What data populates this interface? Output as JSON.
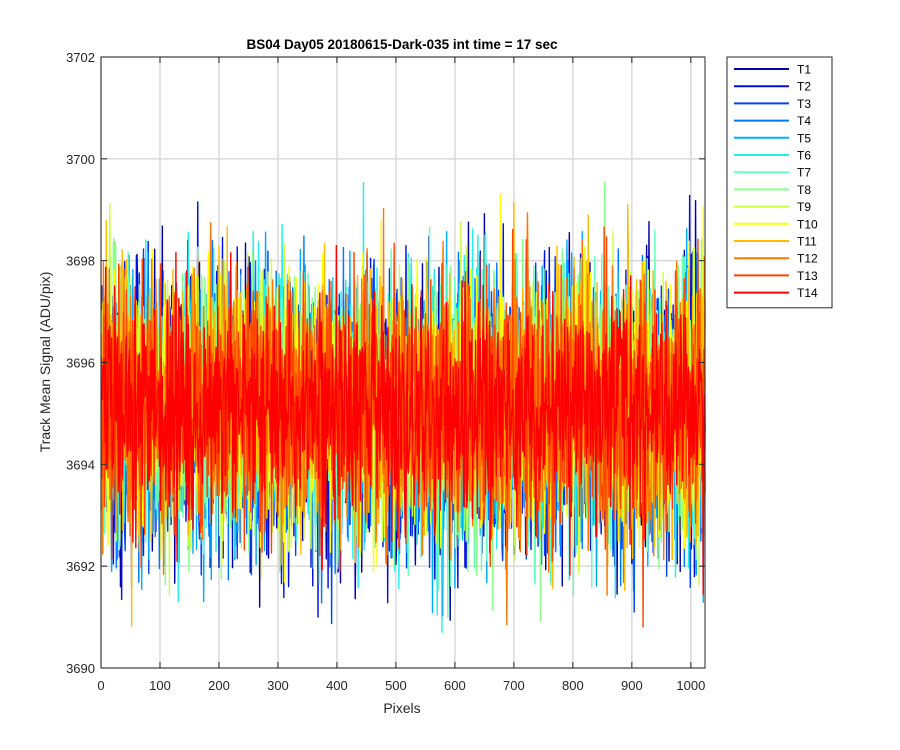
{
  "chart_data": {
    "type": "line",
    "title": "BS04 Day05 20180615-Dark-035 int time = 17 sec",
    "xlabel": "Pixels",
    "ylabel": "Track Mean Signal (ADU/pix)",
    "xlim": [
      0,
      1024
    ],
    "ylim": [
      3690,
      3702
    ],
    "xticks": [
      "0",
      "100",
      "200",
      "300",
      "400",
      "500",
      "600",
      "700",
      "800",
      "900",
      "1000"
    ],
    "yticks": [
      "3690",
      "3692",
      "3694",
      "3696",
      "3698",
      "3700",
      "3702"
    ],
    "grid": true,
    "legend_position": "outside-top-right",
    "n_points_per_series": 1024,
    "series": [
      {
        "name": "T1",
        "color": "#0000aa",
        "mean": 3695.0,
        "spread": 1.35,
        "seed": 11
      },
      {
        "name": "T2",
        "color": "#0011dd",
        "mean": 3695.0,
        "spread": 1.35,
        "seed": 23
      },
      {
        "name": "T3",
        "color": "#0044ee",
        "mean": 3695.0,
        "spread": 1.33,
        "seed": 37
      },
      {
        "name": "T4",
        "color": "#0077ff",
        "mean": 3695.0,
        "spread": 1.3,
        "seed": 41
      },
      {
        "name": "T5",
        "color": "#00aaff",
        "mean": 3695.0,
        "spread": 1.3,
        "seed": 53
      },
      {
        "name": "T6",
        "color": "#22eeee",
        "mean": 3695.1,
        "spread": 1.3,
        "seed": 67
      },
      {
        "name": "T7",
        "color": "#66ffbb",
        "mean": 3695.1,
        "spread": 1.3,
        "seed": 71
      },
      {
        "name": "T8",
        "color": "#88ff88",
        "mean": 3695.2,
        "spread": 1.28,
        "seed": 83
      },
      {
        "name": "T9",
        "color": "#ccff44",
        "mean": 3695.2,
        "spread": 1.28,
        "seed": 97
      },
      {
        "name": "T10",
        "color": "#ffff00",
        "mean": 3695.2,
        "spread": 1.28,
        "seed": 101
      },
      {
        "name": "T11",
        "color": "#ffbb00",
        "mean": 3695.2,
        "spread": 1.25,
        "seed": 113
      },
      {
        "name": "T12",
        "color": "#ff7700",
        "mean": 3695.2,
        "spread": 1.25,
        "seed": 127
      },
      {
        "name": "T13",
        "color": "#ff4400",
        "mean": 3695.1,
        "spread": 1.2,
        "seed": 131
      },
      {
        "name": "T14",
        "color": "#ff0000",
        "mean": 3695.0,
        "spread": 1.1,
        "seed": 149
      }
    ]
  }
}
